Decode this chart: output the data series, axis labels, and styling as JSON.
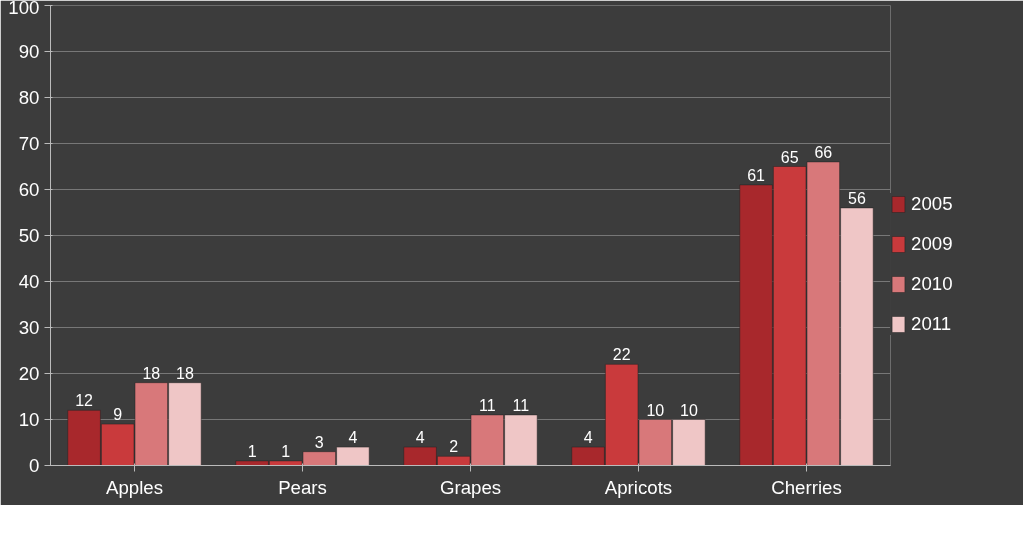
{
  "chart_data": {
    "type": "bar",
    "categories": [
      "Apples",
      "Pears",
      "Grapes",
      "Apricots",
      "Cherries"
    ],
    "series": [
      {
        "name": "2005",
        "color": "#a8282c",
        "values": [
          12,
          1,
          4,
          4,
          61
        ]
      },
      {
        "name": "2009",
        "color": "#c93a3c",
        "values": [
          9,
          1,
          2,
          22,
          65
        ]
      },
      {
        "name": "2010",
        "color": "#d8787a",
        "values": [
          18,
          3,
          11,
          10,
          66
        ]
      },
      {
        "name": "2011",
        "color": "#efc6c6",
        "values": [
          18,
          4,
          11,
          10,
          56
        ]
      }
    ],
    "ylim": [
      0,
      100
    ],
    "yticks": [
      0,
      10,
      20,
      30,
      40,
      50,
      60,
      70,
      80,
      90,
      100
    ],
    "grid": "y",
    "legend": "right",
    "data_labels": true
  }
}
